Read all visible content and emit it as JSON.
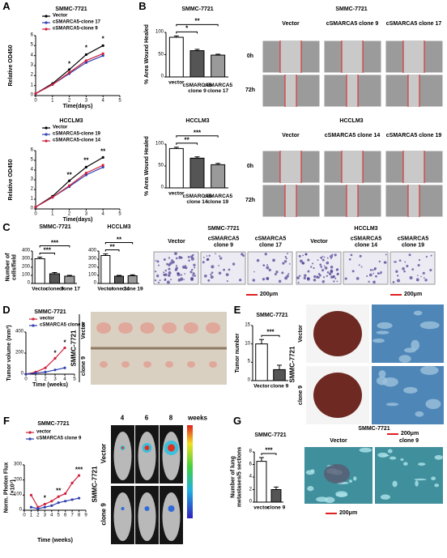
{
  "panel_labels": [
    "A",
    "B",
    "C",
    "D",
    "E",
    "F",
    "G"
  ],
  "chart_data": [
    {
      "type": "line",
      "title": "SMMC-7721",
      "xlabel": "Time(days)",
      "ylabel": "Relative OD450",
      "x": [
        0,
        1,
        2,
        3,
        4
      ],
      "xlim": [
        0,
        5
      ],
      "xticks": [
        0,
        1,
        2,
        3,
        4,
        5
      ],
      "ylim": [
        0,
        6
      ],
      "yticks": [
        0,
        1,
        2,
        3,
        4,
        5,
        6
      ],
      "series": [
        {
          "name": "Vector",
          "color": "#000000",
          "values": [
            0.2,
            1.2,
            2.6,
            4.1,
            5.0
          ]
        },
        {
          "name": "cSMARCA5-clone 17",
          "color": "#2f3fb0",
          "values": [
            0.2,
            1.1,
            2.2,
            3.3,
            4.0
          ]
        },
        {
          "name": "cSMARCA5-clone 9",
          "color": "#d0203a",
          "values": [
            0.2,
            1.1,
            2.3,
            3.5,
            4.2
          ]
        }
      ],
      "annotations": [
        {
          "text": "*",
          "x": 2,
          "y": 3.1
        },
        {
          "text": "*",
          "x": 3,
          "y": 4.7
        },
        {
          "text": "*",
          "x": 4,
          "y": 5.6
        }
      ]
    },
    {
      "type": "line",
      "title": "HCCLM3",
      "xlabel": "Time(days)",
      "ylabel": "Relative OD450",
      "x": [
        0,
        1,
        2,
        3,
        4
      ],
      "xlim": [
        0,
        5
      ],
      "xticks": [
        0,
        1,
        2,
        3,
        4,
        5
      ],
      "ylim": [
        0,
        6
      ],
      "yticks": [
        0,
        1,
        2,
        3,
        4,
        5,
        6
      ],
      "series": [
        {
          "name": "Vector",
          "color": "#000000",
          "values": [
            0.2,
            1.3,
            2.9,
            4.3,
            5.3
          ]
        },
        {
          "name": "cSMARCA5-clone 19",
          "color": "#2f3fb0",
          "values": [
            0.2,
            1.2,
            2.3,
            3.5,
            4.3
          ]
        },
        {
          "name": "cSMARCA5-clone 14",
          "color": "#d0203a",
          "values": [
            0.2,
            1.2,
            2.4,
            3.7,
            4.5
          ]
        }
      ],
      "annotations": [
        {
          "text": "**",
          "x": 2,
          "y": 3.4
        },
        {
          "text": "**",
          "x": 3,
          "y": 4.9
        },
        {
          "text": "**",
          "x": 4,
          "y": 5.8
        }
      ]
    },
    {
      "type": "bar",
      "title": "SMMC-7721",
      "ylabel": "% Area Wound Healed",
      "categories": [
        "vector",
        "cSMARCA5 clone 9",
        "cSMARCA5 clone 17"
      ],
      "values": [
        89,
        59,
        49
      ],
      "errors": [
        3,
        3,
        2
      ],
      "colors": [
        "#ffffff",
        "#555555",
        "#9a9a9a"
      ],
      "ylim": [
        0,
        100
      ],
      "yticks": [
        0,
        50,
        100
      ],
      "significance": [
        {
          "from": 0,
          "to": 1,
          "label": "*"
        },
        {
          "from": 0,
          "to": 2,
          "label": "**"
        }
      ]
    },
    {
      "type": "bar",
      "title": "HCCLM3",
      "ylabel": "% Area Wound Healed",
      "categories": [
        "vector",
        "cSMARCA5 clone 14",
        "cSMARCA5 clone 19"
      ],
      "values": [
        90,
        68,
        53
      ],
      "errors": [
        3,
        3,
        3
      ],
      "colors": [
        "#ffffff",
        "#555555",
        "#9a9a9a"
      ],
      "ylim": [
        0,
        100
      ],
      "yticks": [
        0,
        50,
        100
      ],
      "significance": [
        {
          "from": 0,
          "to": 1,
          "label": "**"
        },
        {
          "from": 0,
          "to": 2,
          "label": "***"
        }
      ]
    },
    {
      "type": "bar",
      "title": "SMMC-7721",
      "ylabel": "Number of cells/field",
      "categories": [
        "Vector",
        "clone 9",
        "clone 17"
      ],
      "values": [
        305,
        120,
        90
      ],
      "errors": [
        20,
        15,
        10
      ],
      "colors": [
        "#ffffff",
        "#555555",
        "#9a9a9a"
      ],
      "ylim": [
        0,
        400
      ],
      "yticks": [
        0,
        100,
        200,
        300,
        400
      ],
      "significance": [
        {
          "from": 0,
          "to": 1,
          "label": "***"
        },
        {
          "from": 0,
          "to": 2,
          "label": "***"
        }
      ]
    },
    {
      "type": "bar",
      "title": "HCCLM3",
      "categories": [
        "Vector",
        "clone 14",
        "clone 19"
      ],
      "values": [
        345,
        90,
        95
      ],
      "errors": [
        20,
        10,
        12
      ],
      "colors": [
        "#ffffff",
        "#555555",
        "#9a9a9a"
      ],
      "ylim": [
        0,
        400
      ],
      "yticks": [
        0,
        100,
        200,
        300,
        400
      ],
      "significance": [
        {
          "from": 0,
          "to": 1,
          "label": "**"
        },
        {
          "from": 0,
          "to": 2,
          "label": "**"
        }
      ]
    },
    {
      "type": "line",
      "title": "SMMC-7721",
      "xlabel": "Time (weeks)",
      "ylabel": "Tumor volume (mm³)",
      "x": [
        0,
        1,
        2,
        3,
        4
      ],
      "xlim": [
        0,
        5
      ],
      "xticks": [
        0,
        1,
        2,
        3,
        4,
        5
      ],
      "ylim": [
        0,
        400
      ],
      "yticks": [
        0,
        200,
        400
      ],
      "series": [
        {
          "name": "vector",
          "color": "#d0203a",
          "values": [
            0,
            20,
            60,
            150,
            250
          ]
        },
        {
          "name": "cSMARCA5 clone 9",
          "color": "#2f3fb0",
          "values": [
            0,
            10,
            20,
            40,
            60
          ]
        }
      ],
      "annotations": [
        {
          "text": "*",
          "x": 3,
          "y": 190
        },
        {
          "text": "*",
          "x": 4,
          "y": 290
        }
      ]
    },
    {
      "type": "bar",
      "title": "SMMC-7721",
      "ylabel": "Tumor number",
      "categories": [
        "Vector",
        "clone 9"
      ],
      "values": [
        10,
        3
      ],
      "errors": [
        1.2,
        1.2
      ],
      "colors": [
        "#ffffff",
        "#555555"
      ],
      "ylim": [
        0,
        15
      ],
      "yticks": [
        0,
        5,
        10,
        15
      ],
      "significance": [
        {
          "from": 0,
          "to": 1,
          "label": "***"
        }
      ]
    },
    {
      "type": "line",
      "title": "SMMC-7721",
      "xlabel": "Time (weeks)",
      "ylabel": "Norm. Photon Flux (×10⁷)",
      "x": [
        1,
        2,
        3,
        4,
        5,
        6,
        7,
        8
      ],
      "xlim": [
        0,
        9
      ],
      "xticks": [
        0,
        1,
        2,
        3,
        4,
        5,
        6,
        7,
        8,
        9
      ],
      "ylim": [
        0,
        300
      ],
      "yticks": [
        0,
        100,
        200,
        300
      ],
      "series": [
        {
          "name": "vector",
          "color": "#d0203a",
          "values": [
            100,
            20,
            40,
            60,
            90,
            110,
            180,
            230
          ]
        },
        {
          "name": "cSMARCA5 clone 9",
          "color": "#2f3fb0",
          "values": [
            20,
            10,
            20,
            30,
            50,
            60,
            70,
            80
          ]
        }
      ],
      "annotations": [
        {
          "text": "*",
          "x": 3,
          "y": 75
        },
        {
          "text": "**",
          "x": 5,
          "y": 125
        },
        {
          "text": "***",
          "x": 8,
          "y": 265
        }
      ]
    },
    {
      "type": "bar",
      "title": "SMMC-7721",
      "ylabel": "Number of lung metastases/5 sections",
      "categories": [
        "vector",
        "clone 9"
      ],
      "values": [
        6.5,
        2
      ],
      "errors": [
        0.6,
        0.4
      ],
      "colors": [
        "#ffffff",
        "#555555"
      ],
      "ylim": [
        0,
        8
      ],
      "yticks": [
        0,
        2,
        4,
        6,
        8
      ],
      "significance": [
        {
          "from": 0,
          "to": 1,
          "label": "***"
        }
      ]
    }
  ],
  "images": [
    {
      "title": "SMMC-7721",
      "columns": [
        "Vector",
        "cSMARCA5 clone 9",
        "cSMARCA5 clone 17"
      ],
      "rows": [
        "0h",
        "72h"
      ]
    },
    {
      "title": "HCCLM3",
      "columns": [
        "Vector",
        "cSMARCA5 clone 14",
        "cSMARCA5 clone 19"
      ],
      "rows": [
        "0h",
        "72h"
      ]
    },
    {
      "title": "SMMC-7721",
      "columns": [
        "Vector",
        "cSMARCA5 clone 9",
        "cSMARCA5 clone 17"
      ],
      "scale": "200μm"
    },
    {
      "title": "HCCLM3",
      "columns": [
        "Vector",
        "cSMARCA5 clone 14",
        "cSMARCA5 clone 19"
      ],
      "scale": "200μm"
    },
    {
      "title": "SMMC-7721",
      "rows": [
        "Vector",
        "clone 9"
      ]
    },
    {
      "title": "SMMC-7721",
      "rows": [
        "Vector",
        "clone 9"
      ],
      "scale": "200μm"
    },
    {
      "title": "SMMC-7721",
      "columns": [
        "4",
        "6",
        "8"
      ],
      "unit": "weeks",
      "rows": [
        "Vector",
        "clone 9"
      ]
    },
    {
      "title": "SMMC-7721",
      "columns": [
        "Vector",
        "clone 9"
      ],
      "scale": "200μm"
    }
  ]
}
